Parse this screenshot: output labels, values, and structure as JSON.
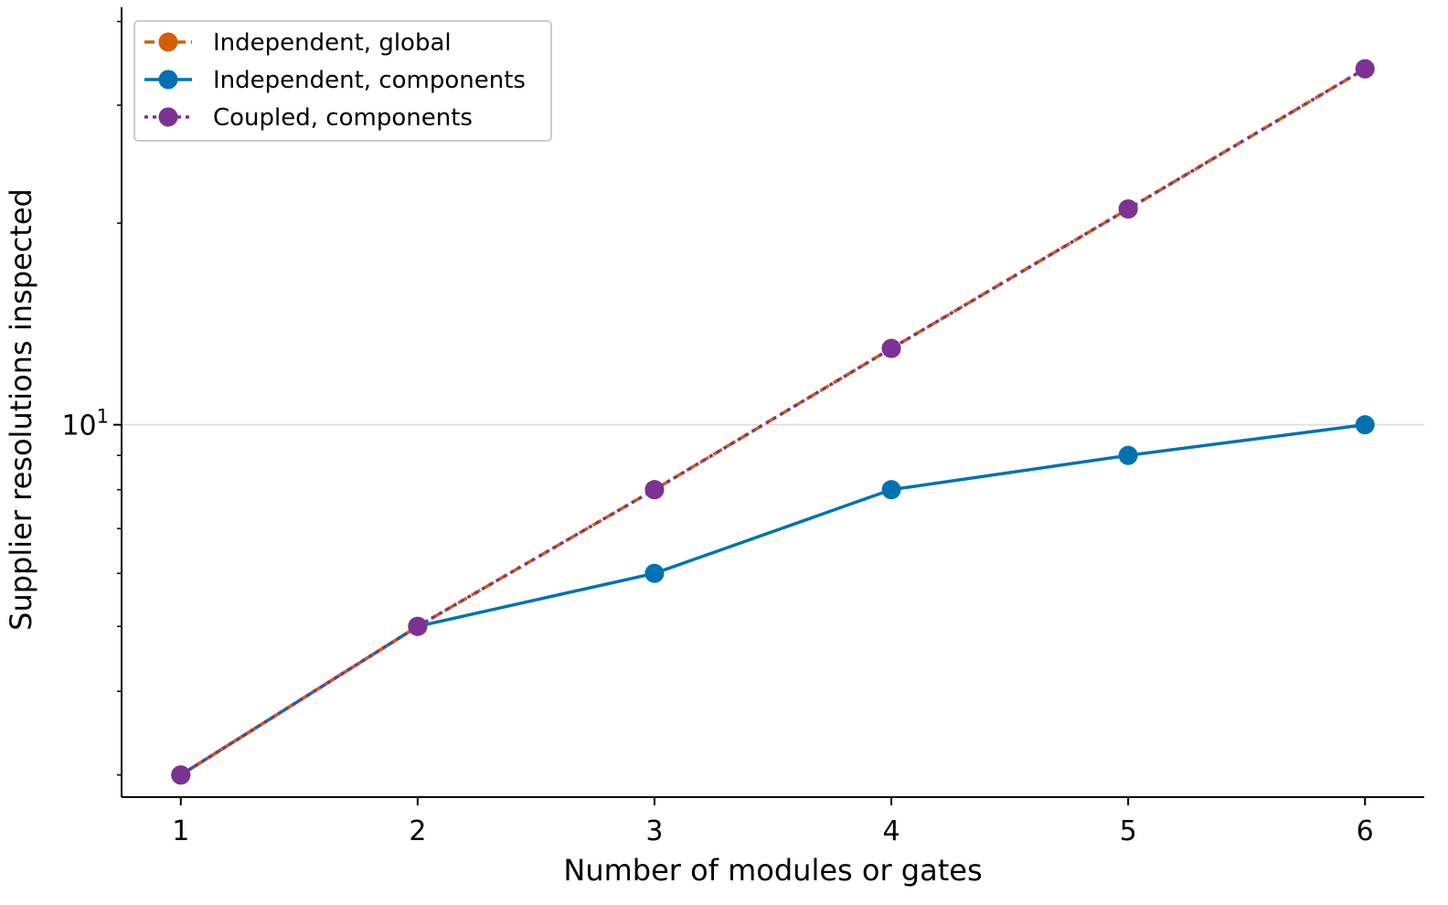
{
  "chart_data": {
    "type": "line",
    "title": "",
    "xlabel": "Number of modules or gates",
    "ylabel": "Supplier resolutions inspected",
    "x": [
      1,
      2,
      3,
      4,
      5,
      6
    ],
    "xticks": [
      "1",
      "2",
      "3",
      "4",
      "5",
      "6"
    ],
    "xlim": [
      0.75,
      6.25
    ],
    "yscale": "log",
    "ylim": [
      2.78,
      42
    ],
    "yticks": [
      {
        "value": 10,
        "base": "10",
        "exp": "1"
      }
    ],
    "minor_yticks": [
      3,
      4,
      5,
      6,
      7,
      8,
      9,
      20,
      30,
      40
    ],
    "grid": "horizontal at major y ticks",
    "legend_position": "upper-left",
    "series": [
      {
        "name": "Independent, global",
        "values": [
          3,
          5,
          8,
          13,
          21,
          34
        ],
        "color": "#D55E00",
        "linestyle": "dashed",
        "marker": "circle"
      },
      {
        "name": "Independent, components",
        "values": [
          3,
          5,
          6,
          8,
          9,
          10
        ],
        "color": "#0072B2",
        "linestyle": "solid",
        "marker": "circle"
      },
      {
        "name": "Coupled, components",
        "values": [
          3,
          5,
          8,
          13,
          21,
          34
        ],
        "color": "#7B3294",
        "linestyle": "dotted",
        "marker": "circle"
      }
    ]
  }
}
